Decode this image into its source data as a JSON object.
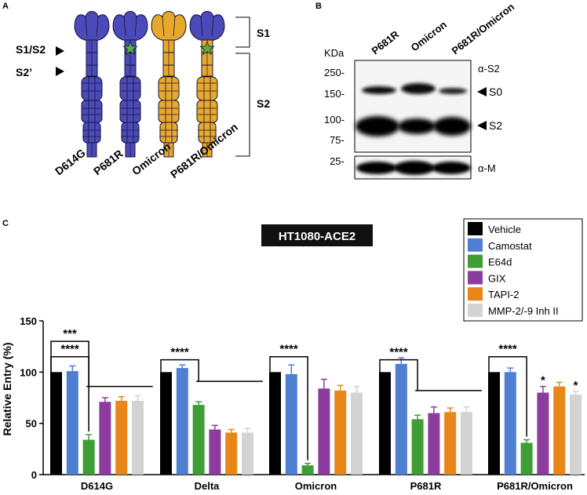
{
  "panels": {
    "A": {
      "letter": "A",
      "site_labels": [
        "S1/S2",
        "S2’"
      ],
      "region_labels": [
        "S1",
        "S2"
      ],
      "constructs": [
        "D614G",
        "P681R",
        "Omicron",
        "P681R/Omicron"
      ],
      "construct_colors": [
        "#4a4ab8",
        "#4a4ab8",
        "#e8a82c",
        "#e8a82c"
      ],
      "head_colors": [
        "#4a4ab8",
        "#4a4ab8",
        "#e8a82c",
        "#4a4ab8"
      ],
      "star_on_construct": [
        false,
        true,
        false,
        true
      ],
      "star_color": "#5bb33a"
    },
    "B": {
      "letter": "B",
      "lane_labels": [
        "P681R",
        "Omicron",
        "P681R/Omicron"
      ],
      "unit_label": "KDa",
      "markers": [
        "250-",
        "150-",
        "100-",
        "75-"
      ],
      "lower_marker": "25-",
      "antibody_top": "α-S2",
      "antibody_bottom": "α-M",
      "band_labels": [
        "S0",
        "S2"
      ]
    },
    "C": {
      "letter": "C"
    }
  },
  "chart_data": {
    "type": "bar",
    "title": "HT1080-ACE2",
    "ylabel": "Relative Entry (%)",
    "xlabel": "",
    "ylim": [
      0,
      150
    ],
    "yticks": [
      "0",
      "50",
      "100",
      "150"
    ],
    "categories": [
      "D614G",
      "Delta",
      "Omicron",
      "P681R",
      "P681R/Omicron"
    ],
    "legend_position": "top-right",
    "grid": false,
    "series": [
      {
        "name": "Vehicle",
        "color": "#000000",
        "values": [
          100,
          100,
          100,
          100,
          100
        ],
        "errors": [
          0,
          0,
          0,
          0,
          0
        ]
      },
      {
        "name": "Camostat",
        "color": "#4f7fd0",
        "values": [
          101,
          104,
          98,
          108,
          100
        ],
        "errors": [
          5,
          3,
          9,
          6,
          4
        ]
      },
      {
        "name": "E64d",
        "color": "#3f9d36",
        "values": [
          34,
          68,
          9,
          54,
          31
        ],
        "errors": [
          5,
          3,
          2,
          4,
          3
        ]
      },
      {
        "name": "GIX",
        "color": "#8c3c9c",
        "values": [
          71,
          44,
          84,
          60,
          80
        ],
        "errors": [
          4,
          4,
          9,
          6,
          6
        ]
      },
      {
        "name": "TAPI-2",
        "color": "#e8861a",
        "values": [
          72,
          41,
          82,
          61,
          86
        ],
        "errors": [
          4,
          3,
          5,
          4,
          4
        ]
      },
      {
        "name": "MMP-2/-9 Inh II",
        "color": "#d3d3d3",
        "values": [
          72,
          41,
          80,
          61,
          78
        ],
        "errors": [
          5,
          4,
          6,
          5,
          3
        ]
      }
    ],
    "significance": [
      {
        "category": "D614G",
        "labels": [
          "***",
          "****"
        ]
      },
      {
        "category": "Delta",
        "labels": [
          "****"
        ]
      },
      {
        "category": "Omicron",
        "labels": [
          "****"
        ]
      },
      {
        "category": "P681R",
        "labels": [
          "****"
        ]
      },
      {
        "category": "P681R/Omicron",
        "labels": [
          "****",
          "*",
          "*"
        ]
      }
    ]
  }
}
